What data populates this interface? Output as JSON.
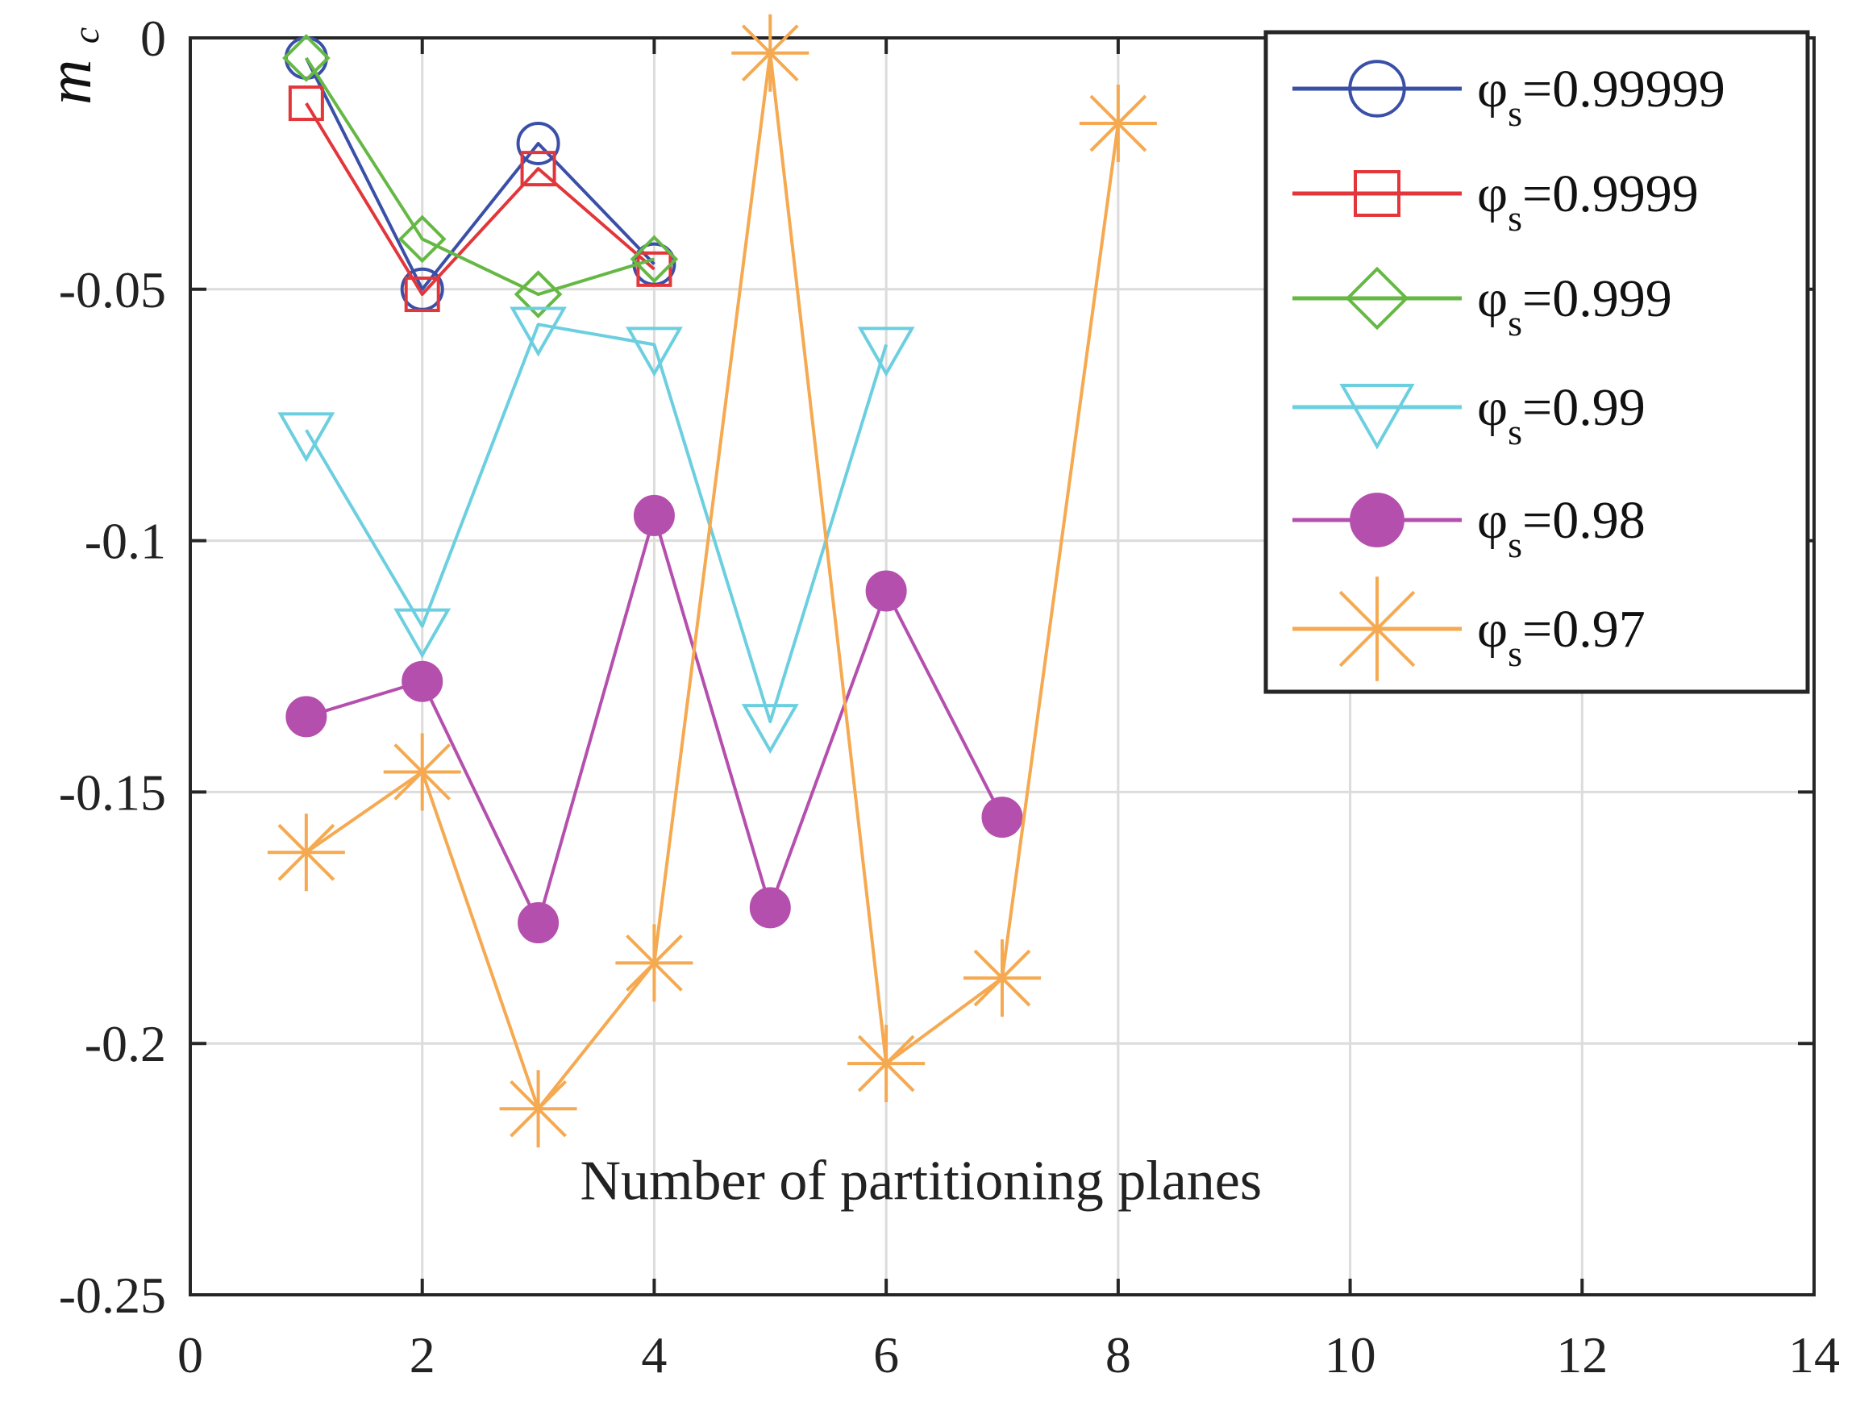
{
  "chart_data": {
    "type": "line",
    "title": "",
    "xlabel": "Number of partitioning planes",
    "ylabel": "mc",
    "ylabel_main": "m",
    "ylabel_sub": "c",
    "xlim": [
      0,
      14
    ],
    "ylim": [
      -0.25,
      0
    ],
    "xticks": [
      0,
      2,
      4,
      6,
      8,
      10,
      12,
      14
    ],
    "xtick_labels": [
      "0",
      "2",
      "4",
      "6",
      "8",
      "10",
      "12",
      "14"
    ],
    "yticks": [
      0,
      -0.05,
      -0.1,
      -0.15,
      -0.2,
      -0.25
    ],
    "ytick_labels": [
      "0",
      "-0.05",
      "-0.1",
      "-0.15",
      "-0.2",
      "-0.25"
    ],
    "grid": true,
    "legend_position": "top-right",
    "series": [
      {
        "name": "φs=0.99999",
        "label_phi": "φ",
        "label_sub": "s",
        "label_value": "=0.99999",
        "color": "#3a4fa8",
        "marker": "circle",
        "x": [
          1,
          2,
          3,
          4
        ],
        "y": [
          -0.004,
          -0.05,
          -0.021,
          -0.045
        ]
      },
      {
        "name": "φs=0.9999",
        "label_phi": "φ",
        "label_sub": "s",
        "label_value": "=0.9999",
        "color": "#e2363a",
        "marker": "square",
        "x": [
          1,
          2,
          3,
          4
        ],
        "y": [
          -0.013,
          -0.051,
          -0.026,
          -0.046
        ]
      },
      {
        "name": "φs=0.999",
        "label_phi": "φ",
        "label_sub": "s",
        "label_value": "=0.999",
        "color": "#66b845",
        "marker": "diamond",
        "x": [
          1,
          2,
          3,
          4
        ],
        "y": [
          -0.004,
          -0.04,
          -0.051,
          -0.044
        ]
      },
      {
        "name": "φs=0.99",
        "label_phi": "φ",
        "label_sub": "s",
        "label_value": "=0.99",
        "color": "#6ccfe0",
        "marker": "triangle-down",
        "x": [
          1,
          2,
          3,
          4,
          5,
          6
        ],
        "y": [
          -0.078,
          -0.117,
          -0.057,
          -0.061,
          -0.136,
          -0.061
        ]
      },
      {
        "name": "φs=0.98",
        "label_phi": "φ",
        "label_sub": "s",
        "label_value": "=0.98",
        "color": "#b54fad",
        "marker": "filled-circle",
        "x": [
          1,
          2,
          3,
          4,
          5,
          6,
          7
        ],
        "y": [
          -0.135,
          -0.128,
          -0.176,
          -0.095,
          -0.173,
          -0.11,
          -0.155
        ]
      },
      {
        "name": "φs=0.97",
        "label_phi": "φ",
        "label_sub": "s",
        "label_value": "=0.97",
        "color": "#f5a950",
        "marker": "star",
        "x": [
          1,
          2,
          3,
          4,
          5,
          6,
          7,
          8
        ],
        "y": [
          -0.162,
          -0.146,
          -0.213,
          -0.184,
          -0.003,
          -0.204,
          -0.187,
          -0.017
        ]
      }
    ]
  }
}
